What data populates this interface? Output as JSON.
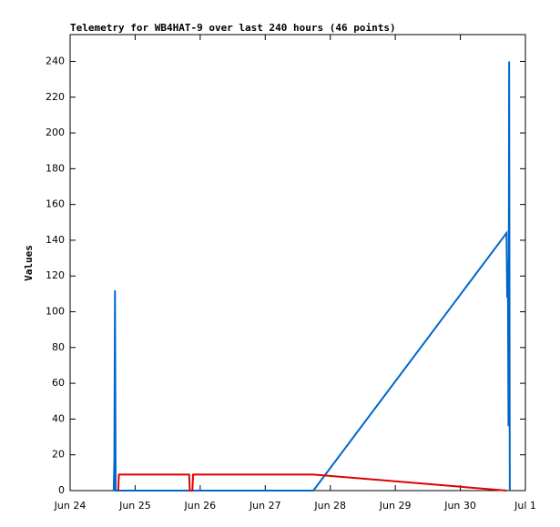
{
  "chart_data": {
    "type": "line",
    "title": "Telemetry for WB4HAT-9 over last 240 hours (46 points)",
    "y_label": "Values",
    "xlim": [
      0,
      7
    ],
    "ylim": [
      0,
      255
    ],
    "xticks": [
      {
        "value": 0,
        "label": "Jun 24"
      },
      {
        "value": 1,
        "label": "Jun 25"
      },
      {
        "value": 2,
        "label": "Jun 26"
      },
      {
        "value": 3,
        "label": "Jun 27"
      },
      {
        "value": 4,
        "label": "Jun 28"
      },
      {
        "value": 5,
        "label": "Jun 29"
      },
      {
        "value": 6,
        "label": "Jun 30"
      },
      {
        "value": 7,
        "label": "Jul 1"
      }
    ],
    "yticks": [
      0,
      20,
      40,
      60,
      80,
      100,
      120,
      140,
      160,
      180,
      200,
      220,
      240
    ],
    "series": [
      {
        "color": "#0066cc",
        "x": [
          0.67,
          0.68,
          0.69,
          0.7,
          3.74,
          6.71,
          6.72,
          6.73,
          6.74,
          6.75,
          6.76
        ],
        "values": [
          0,
          17,
          112,
          0,
          0,
          144,
          108,
          128,
          36,
          240,
          0
        ]
      },
      {
        "color": "#e00000",
        "x": [
          0.74,
          0.75,
          1.83,
          1.84,
          1.88,
          1.89,
          3.74,
          6.71
        ],
        "values": [
          0,
          9,
          9,
          0,
          0,
          9,
          9,
          0
        ]
      }
    ]
  }
}
